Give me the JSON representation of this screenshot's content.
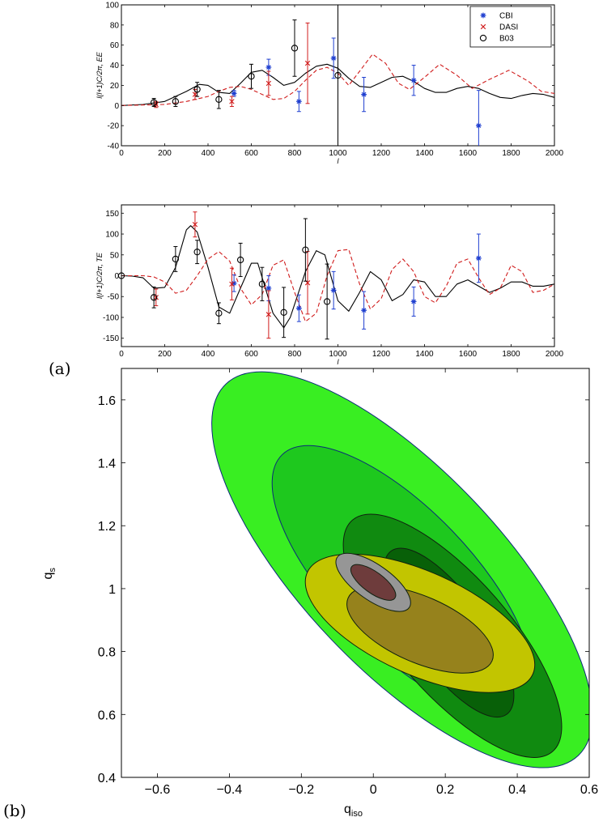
{
  "panel_labels": [
    "(a)",
    "(b)"
  ],
  "chart_data": [
    {
      "type": "scatter",
      "panel": "EE",
      "xlabel": "l",
      "ylabel": "l(l+1)C/2π, EE",
      "xlim": [
        0,
        2000
      ],
      "ylim": [
        -40,
        100
      ],
      "xticks": [
        "0",
        "200",
        "400",
        "600",
        "800",
        "1000",
        "1200",
        "1400",
        "1600",
        "1800",
        "2000"
      ],
      "yticks": [
        "-40",
        "-20",
        "0",
        "20",
        "40",
        "60",
        "80",
        "100"
      ],
      "legend": {
        "placement": "top-right",
        "entries": [
          "CBI",
          "DASI",
          "B03"
        ]
      },
      "series": [
        {
          "name": "CBI",
          "marker": "asterisk",
          "color": "#1f3fd0",
          "points": [
            [
              520,
              12,
              3
            ],
            [
              680,
              38,
              8
            ],
            [
              820,
              4,
              10
            ],
            [
              980,
              47,
              20
            ],
            [
              1120,
              11,
              17
            ],
            [
              1350,
              25,
              15
            ],
            [
              1650,
              -20,
              35
            ]
          ]
        },
        {
          "name": "DASI",
          "marker": "x",
          "color": "#d01c1c",
          "points": [
            [
              160,
              1,
              3
            ],
            [
              340,
              11,
              5
            ],
            [
              510,
              4,
              5
            ],
            [
              680,
              22,
              12
            ],
            [
              860,
              42,
              40
            ]
          ]
        },
        {
          "name": "B03",
          "marker": "circle",
          "color": "#000000",
          "points": [
            [
              150,
              3,
              4
            ],
            [
              250,
              4,
              5
            ],
            [
              350,
              16,
              7
            ],
            [
              450,
              6,
              9
            ],
            [
              600,
              29,
              12
            ],
            [
              800,
              57,
              28
            ],
            [
              1000,
              30,
              70
            ]
          ]
        }
      ],
      "curves": [
        {
          "style": "solid",
          "color": "#000000",
          "points": [
            [
              0,
              0
            ],
            [
              100,
              1
            ],
            [
              200,
              4
            ],
            [
              300,
              14
            ],
            [
              360,
              21
            ],
            [
              400,
              20
            ],
            [
              450,
              13
            ],
            [
              500,
              12
            ],
            [
              550,
              22
            ],
            [
              600,
              33
            ],
            [
              650,
              35
            ],
            [
              700,
              28
            ],
            [
              750,
              20
            ],
            [
              800,
              23
            ],
            [
              850,
              32
            ],
            [
              900,
              39
            ],
            [
              950,
              41
            ],
            [
              1000,
              37
            ],
            [
              1050,
              27
            ],
            [
              1100,
              19
            ],
            [
              1150,
              18
            ],
            [
              1200,
              23
            ],
            [
              1250,
              28
            ],
            [
              1300,
              29
            ],
            [
              1350,
              24
            ],
            [
              1400,
              17
            ],
            [
              1450,
              13
            ],
            [
              1500,
              13
            ],
            [
              1550,
              17
            ],
            [
              1600,
              19
            ],
            [
              1650,
              17
            ],
            [
              1700,
              12
            ],
            [
              1750,
              8
            ],
            [
              1800,
              7
            ],
            [
              1850,
              10
            ],
            [
              1900,
              12
            ],
            [
              1950,
              11
            ],
            [
              2000,
              8
            ]
          ]
        },
        {
          "style": "dashed",
          "color": "#d01c1c",
          "points": [
            [
              0,
              0
            ],
            [
              200,
              1
            ],
            [
              300,
              4
            ],
            [
              400,
              9
            ],
            [
              450,
              14
            ],
            [
              500,
              18
            ],
            [
              550,
              19
            ],
            [
              600,
              16
            ],
            [
              650,
              11
            ],
            [
              700,
              6
            ],
            [
              750,
              7
            ],
            [
              800,
              14
            ],
            [
              850,
              25
            ],
            [
              900,
              35
            ],
            [
              950,
              38
            ],
            [
              1000,
              32
            ],
            [
              1050,
              20
            ],
            [
              1100,
              34
            ],
            [
              1160,
              51
            ],
            [
              1220,
              42
            ],
            [
              1280,
              22
            ],
            [
              1330,
              16
            ],
            [
              1400,
              28
            ],
            [
              1470,
              41
            ],
            [
              1550,
              30
            ],
            [
              1620,
              17
            ],
            [
              1700,
              26
            ],
            [
              1790,
              35
            ],
            [
              1880,
              24
            ],
            [
              1940,
              14
            ],
            [
              2000,
              12
            ]
          ]
        }
      ]
    },
    {
      "type": "scatter",
      "panel": "TE",
      "xlabel": "l",
      "ylabel": "l(l+1)C/2π, TE",
      "xlim": [
        0,
        2000
      ],
      "ylim": [
        -170,
        170
      ],
      "xticks": [
        "0",
        "200",
        "400",
        "600",
        "800",
        "1000",
        "1200",
        "1400",
        "1600",
        "1800",
        "2000"
      ],
      "yticks": [
        "-150",
        "-100",
        "-50",
        "0",
        "50",
        "100",
        "150"
      ],
      "series": [
        {
          "name": "CBI",
          "marker": "asterisk",
          "color": "#1f3fd0",
          "points": [
            [
              520,
              -18,
              20
            ],
            [
              680,
              -30,
              30
            ],
            [
              820,
              -78,
              32
            ],
            [
              980,
              -35,
              45
            ],
            [
              1120,
              -83,
              45
            ],
            [
              1350,
              -62,
              35
            ],
            [
              1650,
              42,
              58
            ]
          ]
        },
        {
          "name": "DASI",
          "marker": "x",
          "color": "#d01c1c",
          "points": [
            [
              160,
              -52,
              20
            ],
            [
              340,
              123,
              30
            ],
            [
              510,
              -20,
              38
            ],
            [
              680,
              -93,
              57
            ],
            [
              860,
              -17,
              75
            ]
          ]
        },
        {
          "name": "B03",
          "marker": "circle",
          "color": "#000000",
          "points": [
            [
              0,
              0,
              0
            ],
            [
              150,
              -52,
              25
            ],
            [
              250,
              40,
              30
            ],
            [
              350,
              57,
              28
            ],
            [
              450,
              -90,
              25
            ],
            [
              550,
              38,
              40
            ],
            [
              650,
              -20,
              40
            ],
            [
              750,
              -88,
              60
            ],
            [
              850,
              62,
              75
            ],
            [
              950,
              -62,
              90
            ]
          ]
        }
      ],
      "curves": [
        {
          "style": "solid",
          "color": "#000000",
          "points": [
            [
              0,
              0
            ],
            [
              50,
              -1
            ],
            [
              100,
              -5
            ],
            [
              150,
              -30
            ],
            [
              200,
              -28
            ],
            [
              250,
              20
            ],
            [
              300,
              110
            ],
            [
              320,
              120
            ],
            [
              350,
              105
            ],
            [
              400,
              20
            ],
            [
              450,
              -75
            ],
            [
              500,
              -90
            ],
            [
              550,
              -30
            ],
            [
              600,
              30
            ],
            [
              630,
              30
            ],
            [
              700,
              -90
            ],
            [
              750,
              -125
            ],
            [
              780,
              -100
            ],
            [
              850,
              10
            ],
            [
              900,
              60
            ],
            [
              940,
              50
            ],
            [
              1000,
              -60
            ],
            [
              1050,
              -85
            ],
            [
              1100,
              -40
            ],
            [
              1150,
              10
            ],
            [
              1200,
              -10
            ],
            [
              1250,
              -60
            ],
            [
              1300,
              -45
            ],
            [
              1350,
              -10
            ],
            [
              1400,
              -15
            ],
            [
              1450,
              -50
            ],
            [
              1500,
              -50
            ],
            [
              1550,
              -20
            ],
            [
              1600,
              -10
            ],
            [
              1650,
              -25
            ],
            [
              1700,
              -40
            ],
            [
              1750,
              -30
            ],
            [
              1800,
              -15
            ],
            [
              1850,
              -15
            ],
            [
              1900,
              -25
            ],
            [
              1950,
              -25
            ],
            [
              2000,
              -20
            ]
          ]
        },
        {
          "style": "dashed",
          "color": "#d01c1c",
          "points": [
            [
              0,
              0
            ],
            [
              100,
              0
            ],
            [
              150,
              -3
            ],
            [
              200,
              -15
            ],
            [
              250,
              -42
            ],
            [
              300,
              -35
            ],
            [
              350,
              0
            ],
            [
              400,
              40
            ],
            [
              450,
              58
            ],
            [
              500,
              35
            ],
            [
              550,
              -30
            ],
            [
              600,
              -70
            ],
            [
              650,
              -45
            ],
            [
              700,
              25
            ],
            [
              750,
              38
            ],
            [
              800,
              -40
            ],
            [
              850,
              -110
            ],
            [
              900,
              -90
            ],
            [
              950,
              0
            ],
            [
              1000,
              60
            ],
            [
              1050,
              63
            ],
            [
              1100,
              -20
            ],
            [
              1150,
              -80
            ],
            [
              1200,
              -55
            ],
            [
              1250,
              15
            ],
            [
              1300,
              40
            ],
            [
              1350,
              10
            ],
            [
              1400,
              -50
            ],
            [
              1450,
              -65
            ],
            [
              1500,
              -25
            ],
            [
              1550,
              30
            ],
            [
              1600,
              40
            ],
            [
              1650,
              -5
            ],
            [
              1700,
              -45
            ],
            [
              1750,
              -30
            ],
            [
              1800,
              25
            ],
            [
              1850,
              10
            ],
            [
              1900,
              -40
            ],
            [
              1950,
              -35
            ],
            [
              2000,
              -20
            ]
          ]
        }
      ]
    },
    {
      "type": "contour",
      "panel": "b",
      "xlabel": "q_iso",
      "ylabel": "q_s",
      "xlim": [
        -0.7,
        0.6
      ],
      "ylim": [
        0.4,
        1.7
      ],
      "xticks": [
        "−0.6",
        "−0.4",
        "−0.2",
        "0",
        "0.2",
        "0.4",
        "0.6"
      ],
      "yticks": [
        "0.4",
        "0.6",
        "0.8",
        "1",
        "1.2",
        "1.4",
        "1.6"
      ],
      "regions": [
        {
          "color": "#39ee22",
          "center": [
            0.08,
            1.06
          ],
          "extreme_points": [
            [
              -0.41,
              1.65
            ],
            [
              0.6,
              0.6
            ]
          ]
        },
        {
          "color": "#1ec81e",
          "center": [
            0.08,
            1.03
          ],
          "extreme_points": [
            [
              -0.24,
              1.41
            ],
            [
              0.4,
              0.62
            ]
          ]
        },
        {
          "color": "#108a10",
          "center": [
            0.22,
            0.85
          ],
          "extreme_points": [
            [
              0.47,
              0.52
            ],
            [
              -0.1,
              1.17
            ]
          ]
        },
        {
          "color": "#086008",
          "center": [
            0.21,
            0.86
          ],
          "extreme_points": [
            [
              0.37,
              0.6
            ],
            [
              0.05,
              1.07
            ]
          ]
        },
        {
          "color": "#c2c500",
          "center": [
            0.13,
            0.89
          ],
          "extreme_points": [
            [
              -0.18,
              1.05
            ],
            [
              0.44,
              0.72
            ]
          ]
        },
        {
          "color": "#96821c",
          "center": [
            0.13,
            0.87
          ],
          "extreme_points": [
            [
              -0.07,
              0.97
            ],
            [
              0.33,
              0.77
            ]
          ]
        },
        {
          "color": "#969696",
          "center": [
            0.0,
            1.02
          ],
          "extreme_points": [
            [
              -0.1,
              1.1
            ],
            [
              0.1,
              0.95
            ]
          ]
        },
        {
          "color": "#6e3c3c",
          "center": [
            0.0,
            1.02
          ],
          "extreme_points": [
            [
              -0.06,
              1.07
            ],
            [
              0.06,
              0.98
            ]
          ]
        }
      ]
    }
  ]
}
